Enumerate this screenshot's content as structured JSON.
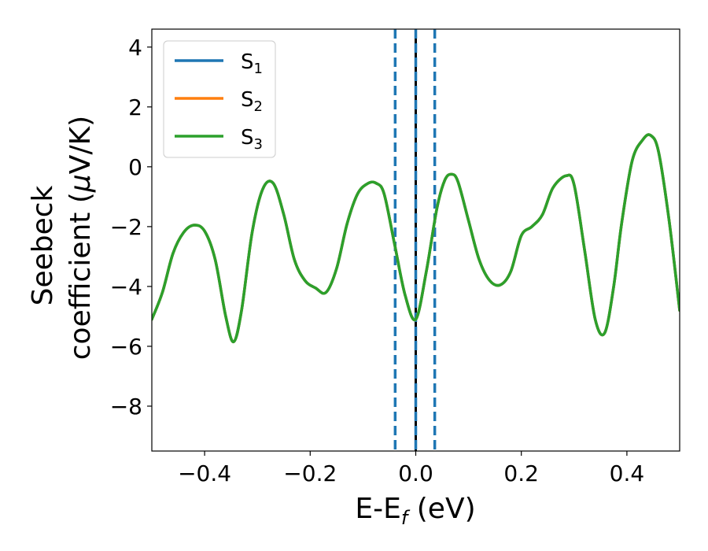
{
  "chart_data": {
    "type": "line",
    "title": "",
    "xlabel": {
      "main": "E-E",
      "sub": "f",
      "tail": " (eV)"
    },
    "ylabel": {
      "line1": "Seebeck",
      "line2_pre": "coefficient  (",
      "mu": "μ",
      "line2_post": "V/K)"
    },
    "xlim": [
      -0.5,
      0.5
    ],
    "ylim": [
      -9.5,
      4.6
    ],
    "xticks": [
      -0.4,
      -0.2,
      0.0,
      0.2,
      0.4
    ],
    "xtick_labels": [
      "−0.4",
      "−0.2",
      "0.0",
      "0.2",
      "0.4"
    ],
    "yticks": [
      -8,
      -6,
      -4,
      -2,
      0,
      2,
      4
    ],
    "ytick_labels": [
      "−8",
      "−6",
      "−4",
      "−2",
      "0",
      "2",
      "4"
    ],
    "grid": false,
    "legend_position": "top-left",
    "legend": [
      {
        "base": "S",
        "sub": "1",
        "color": "#1f77b4"
      },
      {
        "base": "S",
        "sub": "2",
        "color": "#ff7f0e"
      },
      {
        "base": "S",
        "sub": "3",
        "color": "#2ca02c"
      }
    ],
    "vlines": [
      {
        "x": -0.039,
        "style": "dashed",
        "color": "#1f77b4"
      },
      {
        "x": 0.0,
        "style": "solid",
        "color": "#000000"
      },
      {
        "x": 0.0,
        "style": "dashed",
        "color": "#1f77b4"
      },
      {
        "x": 0.036,
        "style": "dashed",
        "color": "#1f77b4"
      }
    ],
    "x": [
      -0.5,
      -0.48,
      -0.46,
      -0.44,
      -0.42,
      -0.4,
      -0.38,
      -0.36,
      -0.345,
      -0.33,
      -0.31,
      -0.29,
      -0.27,
      -0.25,
      -0.23,
      -0.21,
      -0.19,
      -0.17,
      -0.15,
      -0.13,
      -0.11,
      -0.09,
      -0.075,
      -0.06,
      -0.04,
      -0.02,
      0.0,
      0.02,
      0.04,
      0.055,
      0.068,
      0.08,
      0.1,
      0.12,
      0.14,
      0.16,
      0.18,
      0.2,
      0.22,
      0.24,
      0.26,
      0.285,
      0.3,
      0.32,
      0.34,
      0.358,
      0.375,
      0.39,
      0.41,
      0.43,
      0.445,
      0.46,
      0.48,
      0.5
    ],
    "series": [
      {
        "name": "S1",
        "color": "#1f77b4",
        "values": [
          -5.1,
          -4.2,
          -2.9,
          -2.2,
          -1.95,
          -2.15,
          -3.1,
          -5.0,
          -5.85,
          -4.8,
          -2.2,
          -0.75,
          -0.55,
          -1.6,
          -3.1,
          -3.8,
          -4.05,
          -4.2,
          -3.4,
          -1.9,
          -0.9,
          -0.55,
          -0.55,
          -0.9,
          -2.6,
          -4.3,
          -5.1,
          -3.5,
          -1.4,
          -0.45,
          -0.25,
          -0.5,
          -1.8,
          -3.1,
          -3.8,
          -3.95,
          -3.5,
          -2.3,
          -2.0,
          -1.6,
          -0.7,
          -0.3,
          -0.6,
          -2.8,
          -5.1,
          -5.55,
          -4.0,
          -1.9,
          0.2,
          0.9,
          1.05,
          0.5,
          -1.8,
          -4.8
        ]
      },
      {
        "name": "S2",
        "color": "#ff7f0e",
        "values": [
          -5.1,
          -4.2,
          -2.9,
          -2.2,
          -1.95,
          -2.15,
          -3.1,
          -5.0,
          -5.85,
          -4.8,
          -2.2,
          -0.75,
          -0.55,
          -1.6,
          -3.1,
          -3.8,
          -4.05,
          -4.2,
          -3.4,
          -1.9,
          -0.9,
          -0.55,
          -0.55,
          -0.9,
          -2.6,
          -4.3,
          -5.1,
          -3.5,
          -1.4,
          -0.45,
          -0.25,
          -0.5,
          -1.8,
          -3.1,
          -3.8,
          -3.95,
          -3.5,
          -2.3,
          -2.0,
          -1.6,
          -0.7,
          -0.3,
          -0.6,
          -2.8,
          -5.1,
          -5.55,
          -4.0,
          -1.9,
          0.2,
          0.9,
          1.05,
          0.5,
          -1.8,
          -4.8
        ]
      },
      {
        "name": "S3",
        "color": "#2ca02c",
        "values": [
          -5.1,
          -4.2,
          -2.9,
          -2.2,
          -1.95,
          -2.15,
          -3.1,
          -5.0,
          -5.85,
          -4.8,
          -2.2,
          -0.75,
          -0.55,
          -1.6,
          -3.1,
          -3.8,
          -4.05,
          -4.2,
          -3.4,
          -1.9,
          -0.9,
          -0.55,
          -0.55,
          -0.9,
          -2.6,
          -4.3,
          -5.1,
          -3.5,
          -1.4,
          -0.45,
          -0.25,
          -0.5,
          -1.8,
          -3.1,
          -3.8,
          -3.95,
          -3.5,
          -2.3,
          -2.0,
          -1.6,
          -0.7,
          -0.3,
          -0.6,
          -2.8,
          -5.1,
          -5.55,
          -4.0,
          -1.9,
          0.2,
          0.9,
          1.05,
          0.5,
          -1.8,
          -4.8
        ]
      }
    ]
  }
}
